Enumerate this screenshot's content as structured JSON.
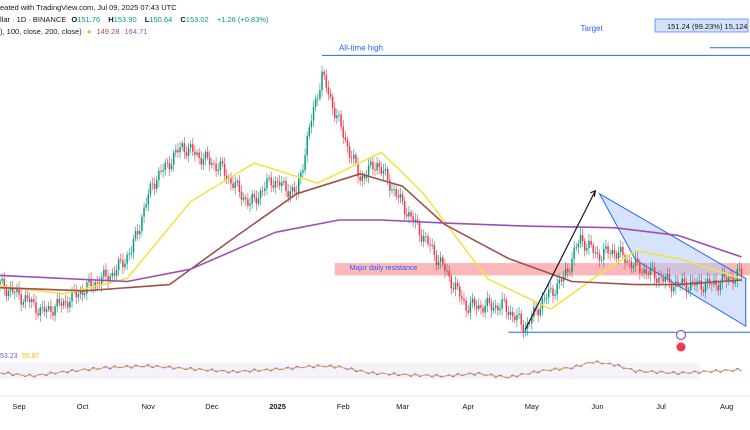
{
  "header": {
    "line1_prefix": "eated with TradingView.com, Jul 09, 2025 07:43 UTC",
    "line2_prefix": "llar · 1D · BINANCE",
    "open_label": "O",
    "open": "151.76",
    "high_label": "H",
    "high": "153.90",
    "low_label": "L",
    "low": "150.64",
    "close_label": "C",
    "close": "153.02",
    "change": "+1.26 (+0.83%)",
    "ma_line": "), 100, close, 200, close)",
    "ma_values": [
      "149.28",
      "164.71"
    ],
    "rsi_values": [
      "53.23",
      "55.87"
    ]
  },
  "colors": {
    "up": "#089981",
    "down": "#F23645",
    "ma50": "#F5E246",
    "ma100": "#A0524A",
    "ma200": "#9C4FB5",
    "annotation": "#2962FF",
    "resistance": "#F77C80",
    "channel": "#B2CCF7",
    "rsi": "#7E57C2"
  },
  "annotations": {
    "target_label": "Target",
    "target_box": "151.24 (99.23%) 15,124",
    "ath_label": "All-time high",
    "resistance_label": "Major daily resistance"
  },
  "chart_data": {
    "type": "candlestick",
    "title": "",
    "xlabel": "",
    "ylabel": "",
    "x_ticks": [
      "Sep",
      "Oct",
      "Nov",
      "Dec",
      "2025",
      "Feb",
      "Mar",
      "Apr",
      "May",
      "Jun",
      "Jul",
      "Aug"
    ],
    "x_range": [
      "2024-08-23",
      "2025-08-12"
    ],
    "y_range": [
      110,
      305
    ],
    "series": [
      {
        "name": "",
        "kind": "candles",
        "start": "2024-08-23",
        "step_days": 1,
        "close_path": [
          [
            0,
            146
          ],
          [
            14,
            135
          ],
          [
            20,
            128
          ],
          [
            30,
            134
          ],
          [
            42,
            145
          ],
          [
            54,
            154
          ],
          [
            62,
            168
          ],
          [
            72,
            212
          ],
          [
            86,
            236
          ],
          [
            96,
            228
          ],
          [
            104,
            222
          ],
          [
            118,
            198
          ],
          [
            128,
            214
          ],
          [
            140,
            205
          ],
          [
            148,
            260
          ],
          [
            152,
            282
          ],
          [
            164,
            236
          ],
          [
            170,
            215
          ],
          [
            178,
            225
          ],
          [
            190,
            198
          ],
          [
            208,
            160
          ],
          [
            220,
            132
          ],
          [
            238,
            132
          ],
          [
            248,
            118
          ],
          [
            256,
            135
          ],
          [
            266,
            150
          ],
          [
            274,
            176
          ],
          [
            282,
            165
          ],
          [
            290,
            168
          ],
          [
            300,
            158
          ],
          [
            318,
            146
          ],
          [
            336,
            146
          ],
          [
            350,
            153
          ]
        ]
      },
      {
        "name": "",
        "kind": "ma",
        "color_key": "ma50",
        "points": [
          [
            0,
            145
          ],
          [
            30,
            140
          ],
          [
            60,
            150
          ],
          [
            90,
            200
          ],
          [
            120,
            225
          ],
          [
            150,
            212
          ],
          [
            180,
            232
          ],
          [
            200,
            205
          ],
          [
            230,
            150
          ],
          [
            260,
            130
          ],
          [
            280,
            150
          ],
          [
            300,
            168
          ],
          [
            320,
            163
          ],
          [
            350,
            150
          ]
        ]
      },
      {
        "name": "",
        "kind": "ma",
        "color_key": "ma100",
        "points": [
          [
            0,
            144
          ],
          [
            40,
            142
          ],
          [
            80,
            146
          ],
          [
            110,
            176
          ],
          [
            140,
            205
          ],
          [
            170,
            218
          ],
          [
            190,
            210
          ],
          [
            210,
            185
          ],
          [
            240,
            163
          ],
          [
            270,
            148
          ],
          [
            300,
            146
          ],
          [
            320,
            146
          ],
          [
            350,
            149
          ]
        ]
      },
      {
        "name": "",
        "kind": "ma",
        "color_key": "ma200",
        "points": [
          [
            0,
            152
          ],
          [
            60,
            148
          ],
          [
            90,
            156
          ],
          [
            130,
            180
          ],
          [
            160,
            188
          ],
          [
            180,
            188
          ],
          [
            210,
            186
          ],
          [
            250,
            184
          ],
          [
            290,
            183
          ],
          [
            320,
            178
          ],
          [
            350,
            164
          ]
        ]
      },
      {
        "name": "",
        "kind": "rsi",
        "color_key": "rsi",
        "points": [
          [
            0,
            46
          ],
          [
            15,
            38
          ],
          [
            30,
            48
          ],
          [
            50,
            58
          ],
          [
            70,
            62
          ],
          [
            90,
            55
          ],
          [
            110,
            48
          ],
          [
            130,
            54
          ],
          [
            150,
            62
          ],
          [
            160,
            60
          ],
          [
            175,
            45
          ],
          [
            195,
            40
          ],
          [
            210,
            38
          ],
          [
            225,
            44
          ],
          [
            240,
            35
          ],
          [
            255,
            50
          ],
          [
            270,
            58
          ],
          [
            280,
            72
          ],
          [
            290,
            65
          ],
          [
            300,
            50
          ],
          [
            320,
            45
          ],
          [
            350,
            53
          ]
        ]
      }
    ],
    "levels": {
      "ath": 295,
      "resistance_band": [
        152,
        160
      ],
      "bottom_line": 115,
      "target": 300
    },
    "arrow": {
      "from": [
        248,
        117
      ],
      "to": [
        281,
        207
      ]
    },
    "channel": {
      "upper": [
        [
          283,
          205
        ],
        [
          352,
          150
        ]
      ],
      "lower": [
        [
          300,
          162
        ],
        [
          352,
          119
        ]
      ]
    },
    "measure_arrow": {
      "x": 356,
      "from": 153,
      "to": 300
    },
    "grid": false
  }
}
